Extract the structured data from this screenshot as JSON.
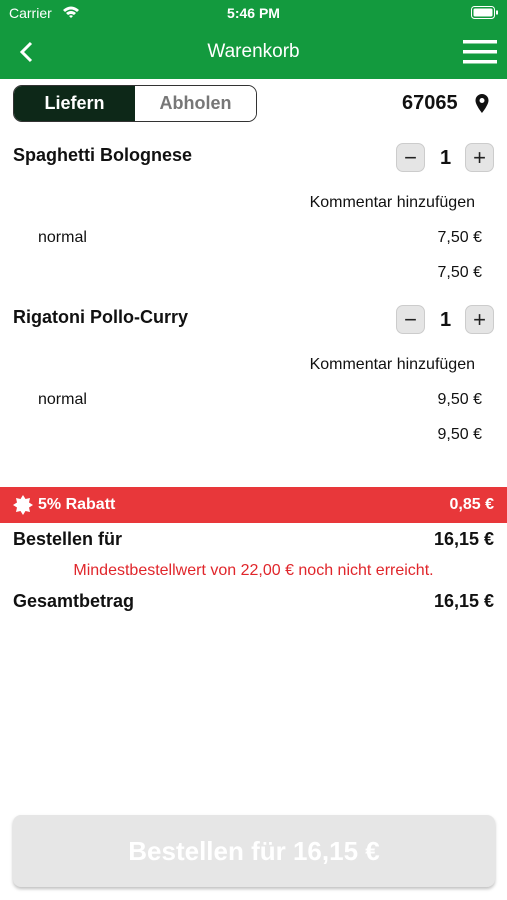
{
  "status_bar": {
    "carrier": "Carrier",
    "time": "5:46 PM"
  },
  "header": {
    "title": "Warenkorb"
  },
  "tabs": [
    "Liefern",
    "Abholen"
  ],
  "postal_code": "67065",
  "items": [
    {
      "name": "Spaghetti Bolognese",
      "quantity": 1,
      "comment": "Kommentar hinzufügen",
      "option": "normal",
      "option_price": "7,50 €",
      "total": "7,50 €"
    },
    {
      "name": "Rigatoni Pollo-Curry",
      "quantity": 1,
      "comment": "Kommentar hinzufügen",
      "option": "normal",
      "option_price": "9,50 €",
      "total": "9,50 €"
    }
  ],
  "discount": {
    "label": "5% Rabatt",
    "amount": "0,85 €"
  },
  "order_for": {
    "label": "Bestellen für",
    "amount": "16,15 €"
  },
  "warning": "Mindestbestellwert von 22,00 € noch nicht erreicht.",
  "total": {
    "label": "Gesamtbetrag",
    "amount": "16,15 €"
  },
  "button": "Bestellen für 16,15 €"
}
